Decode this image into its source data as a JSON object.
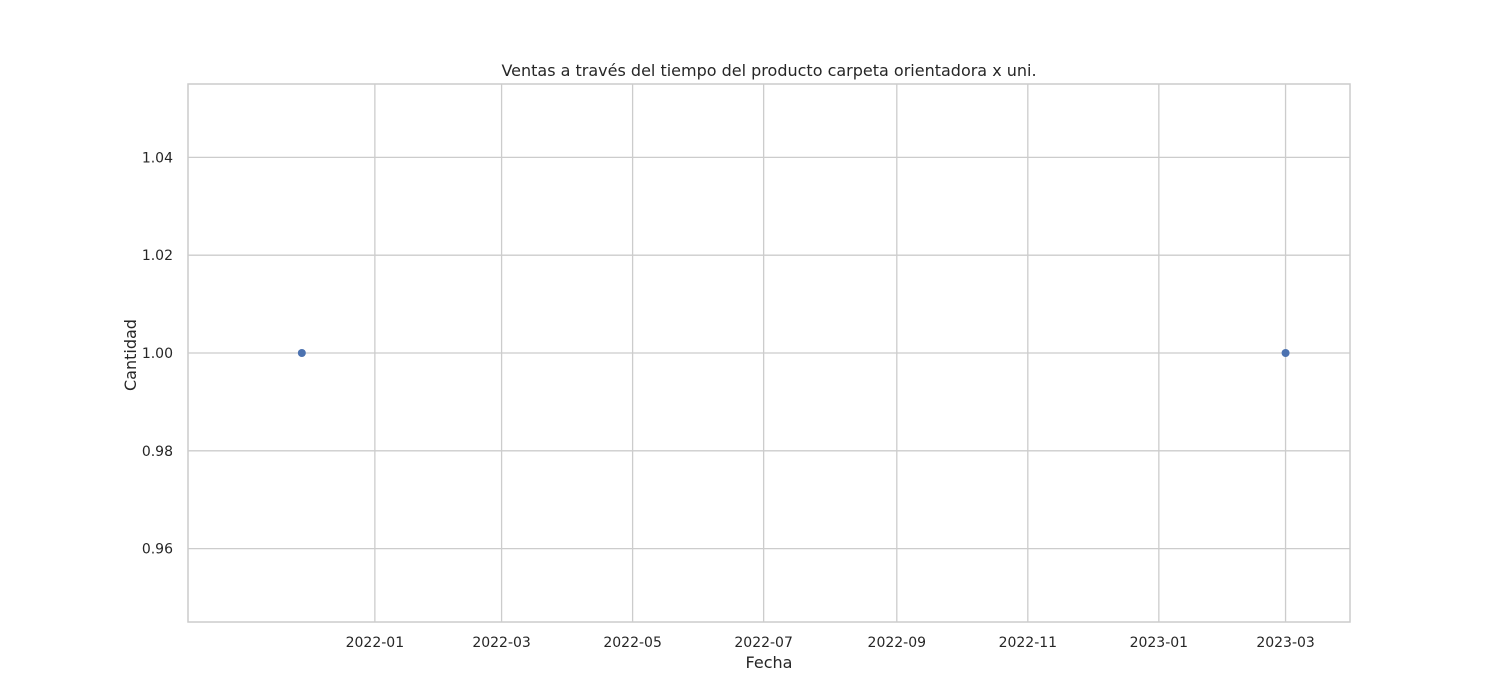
{
  "chart_data": {
    "type": "scatter",
    "title": "Ventas a través del tiempo del producto carpeta orientadora x uni.",
    "xlabel": "Fecha",
    "ylabel": "Cantidad",
    "x_type": "date",
    "xlim": [
      "2021-10-06",
      "2023-03-31"
    ],
    "ylim": [
      0.945,
      1.055
    ],
    "x_ticks": [
      "2022-01",
      "2022-03",
      "2022-05",
      "2022-07",
      "2022-09",
      "2022-11",
      "2023-01",
      "2023-03"
    ],
    "y_ticks": [
      "0.96",
      "0.98",
      "1.00",
      "1.02",
      "1.04"
    ],
    "grid": true,
    "points": [
      {
        "x": "2021-11-28",
        "y": 1.0
      },
      {
        "x": "2023-03-01",
        "y": 1.0
      }
    ],
    "color": "#4c72b0"
  }
}
